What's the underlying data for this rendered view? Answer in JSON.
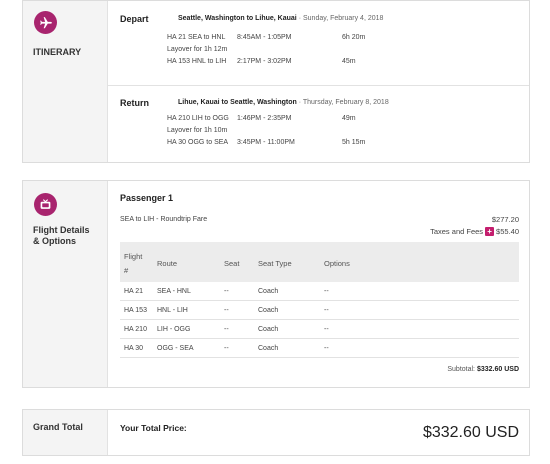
{
  "itinerary": {
    "label": "ITINERARY",
    "icon": "airplane-icon",
    "legs": [
      {
        "name": "Depart",
        "route": "Seattle, Washington to Lihue, Kauai",
        "date": "Sunday, February 4, 2018",
        "flights": [
          {
            "flight": "HA 21  SEA to HNL",
            "time": "8:45AM - 1:05PM",
            "duration": "6h 20m"
          },
          {
            "flight": "HA 153 HNL to LIH",
            "time": "2:17PM - 3:02PM",
            "duration": "45m"
          }
        ],
        "layover": "Layover for 1h 12m"
      },
      {
        "name": "Return",
        "route": "Lihue, Kauai to Seattle, Washington",
        "date": "Thursday, February 8, 2018",
        "flights": [
          {
            "flight": "HA 210 LIH to OGG",
            "time": "1:46PM - 2:35PM",
            "duration": "49m"
          },
          {
            "flight": "HA 30  OGG to SEA",
            "time": "3:45PM - 11:00PM",
            "duration": "5h 15m"
          }
        ],
        "layover": "Layover for 1h 10m"
      }
    ]
  },
  "details": {
    "label": "Flight Details & Options",
    "icon": "tv-icon",
    "passenger": "Passenger 1",
    "fare_label": "SEA to LIH - Roundtrip Fare",
    "fare_price": "$277.20",
    "taxes_label": "Taxes and Fees",
    "taxes_value": "$55.40",
    "columns": {
      "flight_a": "Flight",
      "flight_b": "#",
      "route": "Route",
      "seat": "Seat",
      "seat_type": "Seat Type",
      "options": "Options"
    },
    "rows": [
      {
        "flight": "HA 21",
        "route": "SEA - HNL",
        "seat": "--",
        "seat_type": "Coach",
        "options": "--"
      },
      {
        "flight": "HA 153",
        "route": "HNL - LIH",
        "seat": "--",
        "seat_type": "Coach",
        "options": "--"
      },
      {
        "flight": "HA 210",
        "route": "LIH - OGG",
        "seat": "--",
        "seat_type": "Coach",
        "options": "--"
      },
      {
        "flight": "HA 30",
        "route": "OGG - SEA",
        "seat": "--",
        "seat_type": "Coach",
        "options": "--"
      }
    ],
    "subtotal_label": "Subtotal:",
    "subtotal_value": "$332.60 USD"
  },
  "grand_total": {
    "label": "Grand Total",
    "price_label": "Your Total Price:",
    "price_value": "$332.60 USD"
  },
  "colors": {
    "accent": "#a8246e",
    "plus": "#c41e6e"
  }
}
